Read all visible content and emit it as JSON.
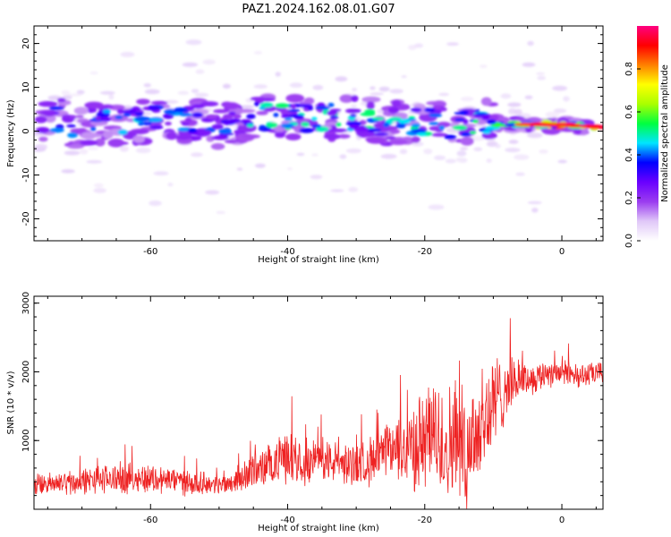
{
  "title": "PAZ1.2024.162.08.01.G07",
  "chart_data": [
    {
      "type": "heatmap",
      "xlabel": "Height of straight line (km)",
      "ylabel": "Frequency (Hz)",
      "xlim": [
        -77,
        6
      ],
      "ylim": [
        -25,
        24
      ],
      "xticks": [
        -60,
        -40,
        -20,
        0
      ],
      "xtick_labels": [
        "-60",
        "-40",
        "-20",
        "0"
      ],
      "yticks": [
        20,
        10,
        0,
        -10,
        -20
      ],
      "ytick_labels": [
        "20",
        "10",
        "0",
        "-10",
        "-20"
      ],
      "colorbar": {
        "label": "Normalized spectral amplitude",
        "range": [
          0,
          1
        ],
        "ticks": [
          0.0,
          0.2,
          0.4,
          0.6,
          0.8
        ],
        "tick_labels": [
          "0.0",
          "0.2",
          "0.4",
          "0.6",
          "0.8"
        ],
        "colormap": [
          "#ffffff",
          "#e0c8f8",
          "#9b3cf0",
          "#6a00ff",
          "#0000ff",
          "#00e5ff",
          "#00ff40",
          "#aaff00",
          "#ffff00",
          "#ff8000",
          "#ff0000",
          "#ff0080"
        ]
      },
      "ridge": {
        "x": [
          -75,
          -70,
          -65,
          -60,
          -55,
          -50,
          -45,
          -40,
          -35,
          -30,
          -25,
          -20,
          -15,
          -10,
          -5,
          0,
          5
        ],
        "y": [
          3,
          1,
          2,
          2.5,
          2.5,
          1,
          3.5,
          3,
          3,
          3,
          2,
          2,
          1.5,
          2,
          1.5,
          1.5,
          1
        ],
        "amplitude": [
          0.5,
          0.4,
          0.45,
          0.5,
          0.45,
          0.4,
          0.5,
          0.55,
          0.5,
          0.55,
          0.5,
          0.55,
          0.55,
          0.6,
          0.75,
          0.9,
          1.0
        ]
      }
    },
    {
      "type": "line",
      "xlabel": "Height of straight line (km)",
      "ylabel": "SNR (10 * v/v)",
      "xlim": [
        -77,
        6
      ],
      "ylim": [
        0,
        3100
      ],
      "xticks": [
        -60,
        -40,
        -20,
        0
      ],
      "xtick_labels": [
        "-60",
        "-40",
        "-20",
        "0"
      ],
      "yticks": [
        1000,
        2000,
        3000
      ],
      "ytick_labels": [
        "1000",
        "2000",
        "3000"
      ],
      "color": "#ee2222",
      "envelope": {
        "x": [
          -77,
          -70,
          -65,
          -60,
          -55,
          -50,
          -48,
          -45,
          -42,
          -40,
          -37,
          -34,
          -31,
          -28,
          -25,
          -22,
          -20,
          -18,
          -16,
          -14,
          -12,
          -10,
          -8,
          -6,
          -4,
          -2,
          0,
          2,
          4,
          6
        ],
        "mean": [
          350,
          400,
          450,
          450,
          400,
          350,
          400,
          550,
          650,
          800,
          700,
          700,
          650,
          700,
          850,
          900,
          1000,
          1000,
          950,
          900,
          1200,
          1500,
          1800,
          1900,
          1900,
          2000,
          2000,
          1950,
          1950,
          2000
        ],
        "spread": [
          180,
          220,
          260,
          250,
          220,
          150,
          200,
          300,
          350,
          450,
          400,
          350,
          350,
          400,
          500,
          700,
          900,
          1000,
          1000,
          1000,
          1100,
          900,
          500,
          300,
          250,
          250,
          250,
          200,
          200,
          200
        ]
      }
    }
  ]
}
